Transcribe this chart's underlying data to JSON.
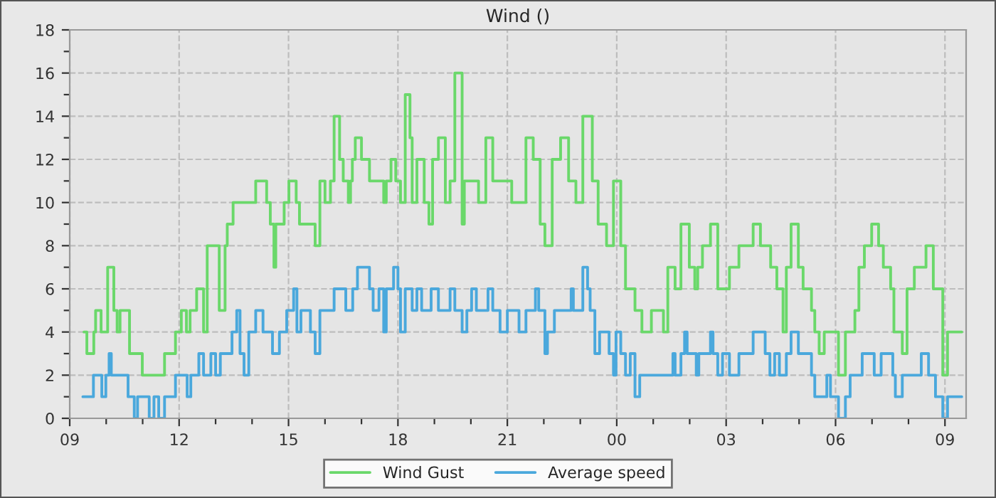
{
  "chart_data": {
    "type": "step",
    "title": "Wind ()",
    "xlim": [
      9,
      33.58
    ],
    "ylim": [
      0,
      18
    ],
    "xticks": [
      {
        "value": 9,
        "label": "09"
      },
      {
        "value": 10,
        "label": null
      },
      {
        "value": 11,
        "label": null
      },
      {
        "value": 12,
        "label": "12"
      },
      {
        "value": 13,
        "label": null
      },
      {
        "value": 14,
        "label": null
      },
      {
        "value": 15,
        "label": "15"
      },
      {
        "value": 16,
        "label": null
      },
      {
        "value": 17,
        "label": null
      },
      {
        "value": 18,
        "label": "18"
      },
      {
        "value": 19,
        "label": null
      },
      {
        "value": 20,
        "label": null
      },
      {
        "value": 21,
        "label": "21"
      },
      {
        "value": 22,
        "label": null
      },
      {
        "value": 23,
        "label": null
      },
      {
        "value": 24,
        "label": "00"
      },
      {
        "value": 25,
        "label": null
      },
      {
        "value": 26,
        "label": null
      },
      {
        "value": 27,
        "label": "03"
      },
      {
        "value": 28,
        "label": null
      },
      {
        "value": 29,
        "label": null
      },
      {
        "value": 30,
        "label": "06"
      },
      {
        "value": 31,
        "label": null
      },
      {
        "value": 32,
        "label": null
      },
      {
        "value": 33,
        "label": "09"
      }
    ],
    "yticks": [
      0,
      {
        "value": 1,
        "label": null
      },
      2,
      {
        "value": 3,
        "label": null
      },
      4,
      {
        "value": 5,
        "label": null
      },
      6,
      {
        "value": 7,
        "label": null
      },
      8,
      {
        "value": 9,
        "label": null
      },
      10,
      {
        "value": 11,
        "label": null
      },
      12,
      {
        "value": 13,
        "label": null
      },
      14,
      {
        "value": 15,
        "label": null
      },
      16,
      {
        "value": 17,
        "label": null
      },
      18
    ],
    "grid": true,
    "legend": "bottom",
    "line_style": "solid",
    "marker": "none",
    "series": [
      {
        "name": "Wind Gust",
        "color": "#6ad86a",
        "x": [
          9.39,
          9.47,
          9.66,
          9.71,
          9.86,
          10.04,
          10.21,
          10.3,
          10.38,
          10.64,
          10.99,
          11.6,
          11.9,
          12.06,
          12.2,
          12.3,
          12.48,
          12.67,
          12.77,
          13.1,
          13.26,
          13.32,
          13.48,
          14.1,
          14.4,
          14.5,
          14.6,
          14.65,
          14.88,
          15.01,
          15.21,
          15.3,
          15.73,
          15.86,
          16.0,
          16.15,
          16.25,
          16.4,
          16.5,
          16.64,
          16.7,
          16.75,
          16.83,
          17.0,
          17.22,
          17.61,
          17.68,
          17.81,
          17.94,
          18.07,
          18.2,
          18.33,
          18.39,
          18.52,
          18.72,
          18.85,
          18.95,
          19.11,
          19.3,
          19.43,
          19.56,
          19.76,
          19.82,
          20.21,
          20.41,
          20.6,
          21.12,
          21.51,
          21.71,
          21.9,
          22.03,
          22.23,
          22.46,
          22.68,
          22.88,
          23.07,
          23.33,
          23.49,
          23.72,
          23.91,
          24.11,
          24.24,
          24.5,
          24.69,
          24.95,
          25.28,
          25.4,
          25.6,
          25.76,
          25.99,
          26.14,
          26.22,
          26.35,
          26.57,
          26.77,
          27.09,
          27.35,
          27.74,
          27.94,
          28.22,
          28.39,
          28.56,
          28.65,
          28.78,
          28.98,
          29.11,
          29.34,
          29.43,
          29.55,
          29.69,
          30.08,
          30.27,
          30.53,
          30.64,
          30.79,
          30.99,
          31.18,
          31.31,
          31.51,
          31.6,
          31.83,
          31.96,
          32.16,
          32.48,
          32.68,
          32.94,
          33.07,
          33.46
        ],
        "values": [
          4,
          3,
          4,
          5,
          4,
          7,
          5,
          4,
          5,
          3,
          2,
          3,
          4,
          5,
          4,
          5,
          6,
          4,
          8,
          5,
          8,
          9,
          10,
          11,
          10,
          9,
          7,
          9,
          10,
          11,
          10,
          9,
          8,
          11,
          10,
          11,
          14,
          12,
          11,
          10,
          11,
          12,
          13,
          12,
          11,
          10,
          11,
          12,
          11,
          10,
          15,
          13,
          10,
          12,
          10,
          9,
          12,
          13,
          10,
          11,
          16,
          9,
          11,
          10,
          13,
          11,
          10,
          13,
          12,
          9,
          8,
          12,
          13,
          11,
          10,
          14,
          11,
          9,
          8,
          11,
          8,
          6,
          5,
          4,
          5,
          4,
          7,
          6,
          9,
          7,
          6,
          7,
          8,
          9,
          6,
          7,
          8,
          9,
          8,
          7,
          6,
          4,
          7,
          9,
          7,
          6,
          5,
          4,
          3,
          4,
          2,
          4,
          5,
          7,
          8,
          9,
          8,
          7,
          6,
          4,
          3,
          6,
          7,
          8,
          6,
          2,
          4,
          4
        ]
      },
      {
        "name": "Average speed",
        "color": "#4aa8dc",
        "x": [
          9.36,
          9.65,
          9.88,
          9.99,
          10.08,
          10.14,
          10.6,
          10.77,
          10.86,
          11.18,
          11.31,
          11.44,
          11.6,
          11.9,
          12.22,
          12.32,
          12.54,
          12.67,
          12.87,
          13.0,
          13.13,
          13.45,
          13.58,
          13.67,
          13.78,
          13.91,
          14.1,
          14.3,
          14.56,
          14.75,
          14.95,
          15.14,
          15.23,
          15.34,
          15.6,
          15.73,
          15.86,
          16.25,
          16.57,
          16.76,
          16.89,
          17.22,
          17.32,
          17.48,
          17.61,
          17.68,
          17.88,
          18.0,
          18.07,
          18.2,
          18.39,
          18.52,
          18.65,
          18.91,
          19.11,
          19.43,
          19.56,
          19.76,
          19.89,
          20.02,
          20.15,
          20.47,
          20.6,
          20.8,
          21.0,
          21.32,
          21.51,
          21.77,
          21.86,
          22.03,
          22.1,
          22.29,
          22.75,
          22.81,
          23.07,
          23.2,
          23.27,
          23.4,
          23.53,
          23.79,
          23.91,
          23.98,
          24.11,
          24.24,
          24.37,
          24.5,
          24.63,
          25.54,
          25.6,
          25.76,
          25.86,
          25.93,
          26.18,
          26.25,
          26.57,
          26.64,
          26.77,
          26.9,
          27.09,
          27.35,
          27.74,
          28.07,
          28.2,
          28.33,
          28.46,
          28.65,
          28.78,
          28.98,
          29.34,
          29.43,
          29.76,
          29.86,
          30.08,
          30.27,
          30.4,
          30.73,
          31.06,
          31.25,
          31.57,
          31.64,
          31.83,
          32.35,
          32.55,
          32.74,
          32.94,
          33.07,
          33.46
        ],
        "values": [
          1,
          2,
          1,
          2,
          3,
          2,
          1,
          0,
          1,
          0,
          1,
          0,
          1,
          2,
          1,
          2,
          3,
          2,
          3,
          2,
          3,
          4,
          5,
          3,
          2,
          4,
          5,
          4,
          3,
          4,
          5,
          6,
          4,
          5,
          4,
          3,
          5,
          6,
          5,
          6,
          7,
          6,
          5,
          6,
          4,
          6,
          7,
          6,
          4,
          6,
          5,
          6,
          5,
          6,
          5,
          6,
          5,
          4,
          5,
          6,
          5,
          6,
          5,
          4,
          5,
          4,
          5,
          6,
          5,
          3,
          4,
          5,
          6,
          5,
          7,
          6,
          5,
          3,
          4,
          3,
          2,
          4,
          3,
          2,
          3,
          1,
          2,
          3,
          2,
          3,
          4,
          3,
          2,
          3,
          4,
          3,
          2,
          3,
          2,
          3,
          4,
          3,
          2,
          3,
          2,
          3,
          4,
          3,
          2,
          1,
          2,
          1,
          0,
          1,
          2,
          3,
          2,
          3,
          2,
          1,
          2,
          3,
          2,
          1,
          0,
          1,
          1
        ]
      }
    ]
  }
}
